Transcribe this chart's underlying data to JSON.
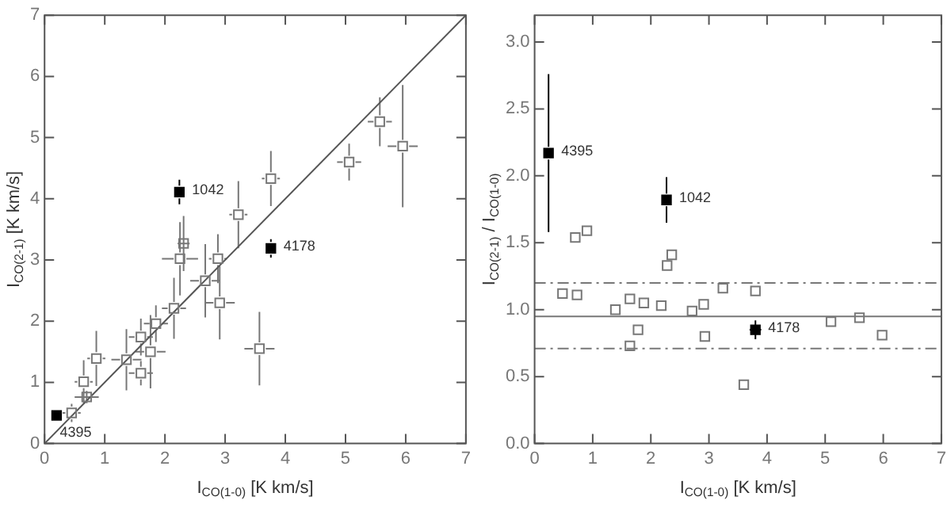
{
  "chart_data": [
    {
      "type": "scatter",
      "xlabel": "I$_{CO(1-0)}$ [K km/s]",
      "ylabel": "I$_{CO(2-1)}$ [K km/s]",
      "xlim": [
        0,
        7
      ],
      "ylim": [
        0,
        7
      ],
      "xticks": [
        0,
        1,
        2,
        3,
        4,
        5,
        6,
        7
      ],
      "yticks": [
        0,
        1,
        2,
        3,
        4,
        5,
        6,
        7
      ],
      "marker": "square",
      "series": [
        {
          "color": "#777777",
          "x": [
            0.45,
            0.7,
            0.65,
            0.86,
            1.36,
            1.6,
            1.6,
            1.76,
            1.85,
            2.15,
            2.25,
            2.31,
            2.67,
            2.88,
            2.91,
            3.22,
            3.57,
            3.76,
            5.06,
            5.57,
            5.95
          ],
          "values": [
            0.5,
            0.76,
            1.01,
            1.39,
            1.37,
            1.74,
            1.15,
            1.5,
            1.96,
            2.21,
            3.02,
            3.27,
            2.66,
            3.02,
            2.3,
            3.74,
            1.55,
            4.33,
            4.6,
            5.26,
            4.86
          ],
          "errors": [
            0.15,
            0.1,
            0.35,
            0.45,
            0.5,
            0.3,
            0.2,
            0.6,
            0.3,
            0.5,
            0.6,
            0.45,
            0.6,
            0.4,
            0.6,
            0.55,
            0.6,
            0.45,
            0.3,
            0.4,
            1.0
          ],
          "xerrors": [
            0.15,
            0.2,
            0.15,
            0.15,
            0.25,
            0.2,
            0.2,
            0.25,
            0.2,
            0.2,
            0.3,
            0.1,
            0.25,
            0.15,
            0.25,
            0.15,
            0.25,
            0.15,
            0.2,
            0.2,
            0.25
          ]
        },
        {
          "color": "#000000",
          "x": [
            2.24,
            3.76,
            0.2
          ],
          "values": [
            4.11,
            3.19,
            0.46
          ],
          "errors": [
            0.2,
            0.15,
            null
          ],
          "xerrors": [
            null,
            null,
            null
          ]
        },
        {
          "type": "line",
          "color": "#555555",
          "marker": "none",
          "x": [
            0,
            7
          ],
          "values": [
            0,
            7
          ]
        }
      ],
      "annotations": [
        {
          "text": "1042",
          "x": 2.24,
          "y": 4.11
        },
        {
          "text": "4178",
          "x": 3.76,
          "y": 3.19
        },
        {
          "text": "4395",
          "x": 0.2,
          "y": 0.46
        }
      ]
    },
    {
      "type": "scatter",
      "xlabel": "I$_{CO(1-0)}$ [K km/s]",
      "ylabel": "I$_{CO(2-1)}$ / I$_{CO(1-0)}$",
      "xlim": [
        0,
        7
      ],
      "ylim": [
        0,
        3.2
      ],
      "xticks": [
        0,
        1,
        2,
        3,
        4,
        5,
        6,
        7
      ],
      "yticks": [
        {
          "value": 0,
          "label": "0.0"
        },
        {
          "value": 0.5,
          "label": "0.5"
        },
        {
          "value": 1,
          "label": "1.0"
        },
        {
          "value": 1.5,
          "label": "1.5"
        },
        {
          "value": 2,
          "label": "2.0"
        },
        {
          "value": 2.5,
          "label": "2.5"
        },
        {
          "value": 3,
          "label": "3.0"
        }
      ],
      "marker": "square",
      "series": [
        {
          "color": "#777777",
          "x": [
            0.48,
            0.73,
            0.7,
            0.9,
            1.39,
            1.64,
            1.64,
            1.78,
            1.88,
            2.18,
            2.28,
            2.36,
            2.71,
            2.91,
            2.93,
            3.24,
            3.6,
            3.8,
            5.1,
            5.59,
            5.98
          ],
          "values": [
            1.12,
            1.11,
            1.54,
            1.59,
            1.0,
            1.08,
            0.73,
            0.85,
            1.05,
            1.03,
            1.33,
            1.41,
            0.99,
            1.04,
            0.8,
            1.16,
            0.44,
            1.14,
            0.91,
            0.94,
            0.81
          ]
        },
        {
          "color": "#000000",
          "x": [
            0.24,
            2.27,
            3.8
          ],
          "values": [
            2.17,
            1.82,
            0.85
          ],
          "errors": [
            0.59,
            0.17,
            0.07
          ],
          "xerrors": [
            null,
            null,
            0.1
          ]
        }
      ],
      "ref_lines": [
        {
          "axis": "y",
          "value": 0.95,
          "color": "#777777",
          "line_style": "solid"
        },
        {
          "axis": "y",
          "value": 1.2,
          "color": "#777777",
          "line_style": "dashed"
        },
        {
          "axis": "y",
          "value": 0.71,
          "color": "#777777",
          "line_style": "dashed"
        }
      ],
      "annotations": [
        {
          "text": "4395",
          "x": 0.24,
          "y": 2.17
        },
        {
          "text": "1042",
          "x": 2.27,
          "y": 1.82
        },
        {
          "text": "4178",
          "x": 3.8,
          "y": 0.85
        }
      ]
    }
  ]
}
